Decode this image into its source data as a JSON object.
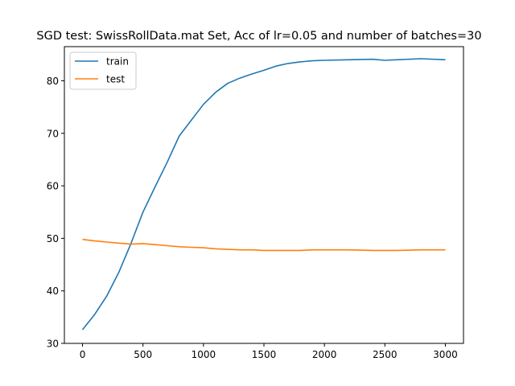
{
  "chart_data": {
    "type": "line",
    "title": "SGD test: SwissRollData.mat Set, Acc of lr=0.05 and number of batches=30",
    "xlabel": "",
    "ylabel": "",
    "xlim": [
      -150,
      3150
    ],
    "ylim": [
      30,
      86.5
    ],
    "x_ticks": [
      0,
      500,
      1000,
      1500,
      2000,
      2500,
      3000
    ],
    "y_ticks": [
      30,
      40,
      50,
      60,
      70,
      80
    ],
    "grid": false,
    "legend_position": "top-left",
    "series": [
      {
        "name": "train",
        "color": "#1f77b4",
        "x": [
          0,
          100,
          200,
          300,
          400,
          500,
          600,
          700,
          800,
          900,
          1000,
          1100,
          1200,
          1300,
          1400,
          1500,
          1600,
          1700,
          1800,
          1900,
          2000,
          2200,
          2400,
          2500,
          2600,
          2800,
          3000
        ],
        "y": [
          32.6,
          35.5,
          39.0,
          43.5,
          49.0,
          55.0,
          59.8,
          64.5,
          69.5,
          72.5,
          75.5,
          77.8,
          79.5,
          80.5,
          81.3,
          82.0,
          82.8,
          83.3,
          83.6,
          83.8,
          83.9,
          84.0,
          84.1,
          83.9,
          84.0,
          84.2,
          84.0
        ]
      },
      {
        "name": "test",
        "color": "#ff7f0e",
        "x": [
          0,
          100,
          200,
          300,
          400,
          500,
          600,
          700,
          800,
          900,
          1000,
          1100,
          1200,
          1300,
          1400,
          1500,
          1600,
          1700,
          1800,
          1900,
          2000,
          2200,
          2400,
          2500,
          2600,
          2800,
          3000
        ],
        "y": [
          49.8,
          49.5,
          49.3,
          49.1,
          48.9,
          49.0,
          48.8,
          48.6,
          48.4,
          48.3,
          48.2,
          48.0,
          47.9,
          47.8,
          47.8,
          47.7,
          47.7,
          47.7,
          47.7,
          47.8,
          47.8,
          47.8,
          47.7,
          47.7,
          47.7,
          47.8,
          47.8
        ]
      }
    ]
  }
}
